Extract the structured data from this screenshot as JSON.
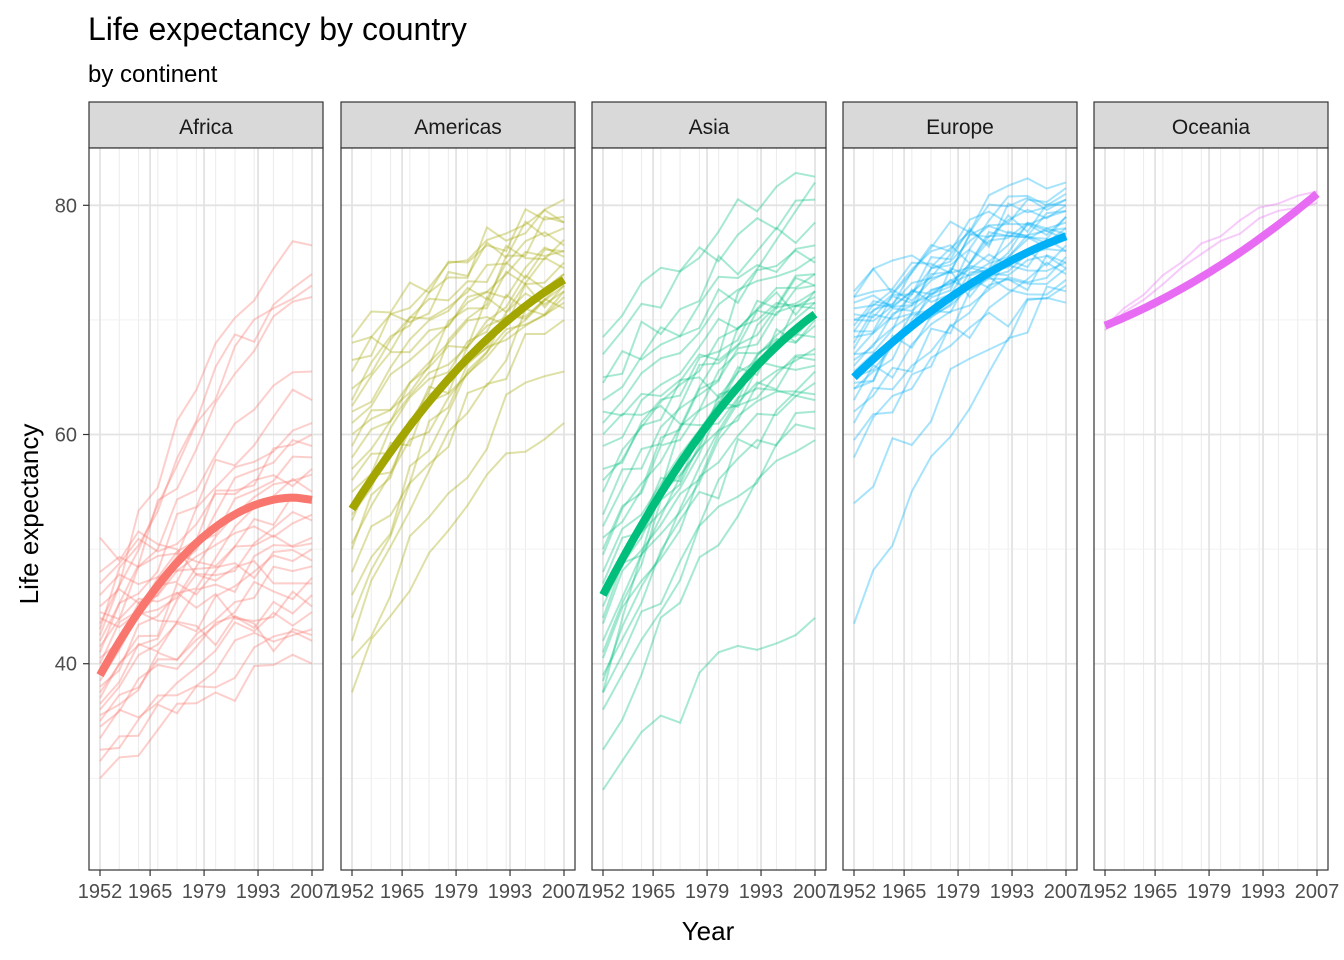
{
  "chart_data": {
    "type": "line",
    "title": "Life expectancy by country",
    "subtitle": "by continent",
    "xlabel": "Year",
    "ylabel": "Life expectancy",
    "xlim": [
      1952,
      2007
    ],
    "ylim": [
      22,
      85
    ],
    "x_ticks": [
      1952,
      1965,
      1979,
      1993,
      2007
    ],
    "x_tick_labels": [
      "1952",
      "1965",
      "1979",
      "1993",
      "2007"
    ],
    "y_ticks": [
      40,
      60,
      80
    ],
    "y_tick_labels": [
      "40",
      "60",
      "80"
    ],
    "years": [
      1952,
      1957,
      1962,
      1967,
      1972,
      1977,
      1982,
      1987,
      1992,
      1997,
      2002,
      2007
    ],
    "grid": true,
    "facets": [
      {
        "name": "Africa",
        "color": "#F8766D",
        "trend": {
          "start": 39.0,
          "end": 54.3,
          "peak": 54.5
        },
        "countries_start": [
          30.0,
          31.5,
          32.5,
          33.5,
          34.5,
          35.0,
          35.5,
          36.0,
          36.5,
          37.0,
          37.5,
          38.0,
          38.5,
          39.0,
          39.5,
          40.0,
          40.5,
          41.0,
          41.5,
          42.0,
          42.5,
          43.0,
          43.5,
          44.0,
          44.5,
          45.0,
          46.0,
          47.0,
          48.0,
          51.0
        ],
        "countries_end": [
          40.0,
          42.0,
          43.0,
          44.5,
          46.0,
          47.5,
          48.5,
          50.0,
          51.0,
          52.5,
          54.0,
          55.0,
          56.5,
          58.0,
          59.0,
          60.0,
          61.0,
          63.0,
          65.5,
          72.0,
          73.0,
          74.0,
          76.5,
          42.5,
          45.0,
          49.0,
          53.0,
          57.0,
          50.5,
          47.0
        ]
      },
      {
        "name": "Americas",
        "color": "#A3A500",
        "trend": {
          "start": 53.5,
          "end": 73.5
        },
        "countries_start": [
          37.5,
          40.5,
          42.0,
          44.0,
          46.0,
          48.0,
          50.5,
          52.5,
          55.0,
          57.0,
          59.0,
          61.0,
          62.5,
          64.0,
          65.5,
          66.5,
          68.0,
          68.5,
          63.0,
          60.0,
          56.0,
          53.0,
          58.0,
          62.0,
          50.0
        ],
        "countries_end": [
          61.0,
          65.5,
          70.0,
          71.5,
          72.0,
          72.5,
          73.0,
          73.5,
          74.0,
          74.5,
          75.0,
          75.5,
          76.0,
          76.5,
          77.0,
          78.0,
          78.5,
          79.0,
          80.5,
          73.0,
          71.0,
          72.5,
          74.0,
          76.0,
          78.5
        ]
      },
      {
        "name": "Asia",
        "color": "#00BF7D",
        "trend": {
          "start": 46.0,
          "end": 70.5
        },
        "countries_start": [
          29.0,
          32.5,
          36.0,
          37.5,
          39.0,
          40.5,
          42.0,
          43.5,
          45.0,
          46.5,
          48.0,
          49.5,
          51.0,
          53.0,
          55.0,
          57.0,
          59.0,
          61.0,
          63.0,
          65.0,
          67.0,
          68.5,
          37.5,
          41.0,
          44.0,
          47.0,
          50.0,
          52.0,
          56.0,
          60.0,
          62.0,
          64.5,
          38.5
        ],
        "countries_end": [
          44.0,
          59.5,
          60.5,
          62.0,
          63.5,
          64.5,
          65.5,
          66.5,
          67.5,
          68.5,
          69.5,
          70.5,
          71.5,
          72.0,
          72.5,
          73.0,
          74.0,
          75.5,
          76.5,
          78.5,
          80.5,
          82.5,
          82.0,
          74.0,
          71.0,
          67.0,
          70.0,
          73.0,
          72.5,
          63.0,
          66.0,
          75.0,
          71.5
        ]
      },
      {
        "name": "Europe",
        "color": "#00B0F6",
        "trend": {
          "start": 65.0,
          "end": 77.3
        },
        "countries_start": [
          43.5,
          54.0,
          58.0,
          59.5,
          61.0,
          62.0,
          63.0,
          64.0,
          64.5,
          65.0,
          65.5,
          66.0,
          66.5,
          67.0,
          67.5,
          68.0,
          68.5,
          69.0,
          69.5,
          70.0,
          70.5,
          71.0,
          71.5,
          72.0,
          72.5,
          67.0,
          69.0,
          70.0,
          72.0,
          64.0
        ],
        "countries_end": [
          72.5,
          71.5,
          73.0,
          74.0,
          74.5,
          75.0,
          75.5,
          76.0,
          76.5,
          77.0,
          77.5,
          78.0,
          78.5,
          79.0,
          79.5,
          80.0,
          80.5,
          81.0,
          81.5,
          82.0,
          73.5,
          74.5,
          75.0,
          76.0,
          77.0,
          78.0,
          79.0,
          80.0,
          80.5,
          79.5
        ]
      },
      {
        "name": "Oceania",
        "color": "#E76BF3",
        "trend": {
          "start": 69.5,
          "end": 81.0
        },
        "countries_start": [
          69.1,
          69.4
        ],
        "countries_end": [
          80.2,
          81.2
        ]
      }
    ]
  }
}
